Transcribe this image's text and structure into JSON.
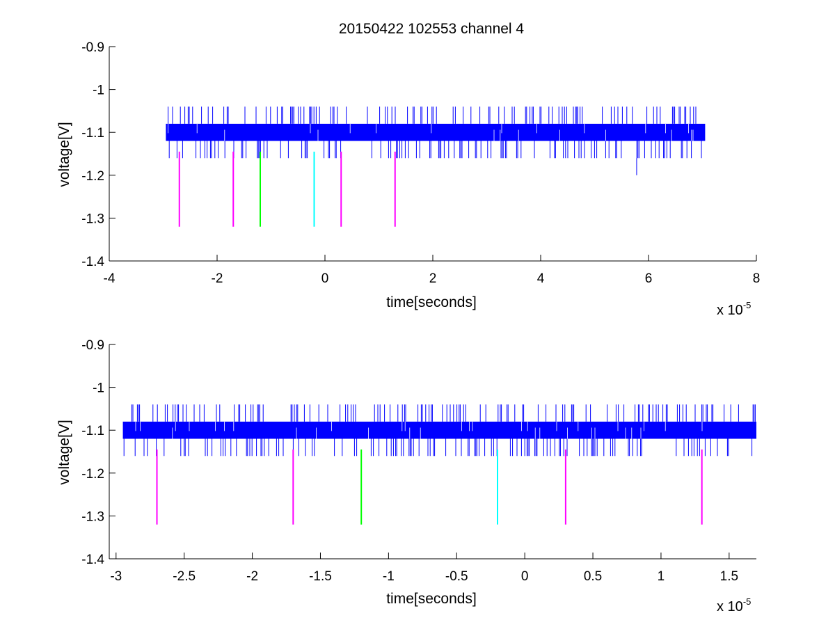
{
  "figure_title": "20150422 102553 channel 4",
  "colors": {
    "signal": "#0000ff",
    "marker_magenta": "#ff00ff",
    "marker_green": "#00ff00",
    "marker_cyan": "#00ffff",
    "axes": "#000000",
    "background": "#ffffff"
  },
  "chart_data": [
    {
      "type": "line",
      "title": "20150422 102553 channel 4",
      "xlabel": "time[seconds]",
      "ylabel": "voltage[V]",
      "x_multiplier": {
        "base": "x 10",
        "exponent": "-5"
      },
      "xlim": [
        -4,
        8
      ],
      "ylim": [
        -1.4,
        -0.9
      ],
      "xticks": [
        -4,
        -2,
        0,
        2,
        4,
        6,
        8
      ],
      "xtick_labels": [
        "-4",
        "-2",
        "0",
        "2",
        "4",
        "6",
        "8"
      ],
      "yticks": [
        -1.4,
        -1.3,
        -1.2,
        -1.1,
        -1,
        -0.9
      ],
      "ytick_labels": [
        "-1.4",
        "-1.3",
        "-1.2",
        "-1.1",
        "-1",
        "-0.9"
      ],
      "grid": false,
      "legend": "none",
      "series": [
        {
          "x_range": [
            -2.95,
            7.05
          ],
          "baseline_band": [
            -1.12,
            -1.08
          ],
          "spike_high": -1.04,
          "spike_low": -1.16,
          "outlier": {
            "x": 5.78,
            "y": -1.2
          }
        }
      ],
      "markers": [
        {
          "x": -2.7,
          "y_range": [
            -1.32,
            -1.145
          ],
          "color": "#ff00ff"
        },
        {
          "x": -1.7,
          "y_range": [
            -1.32,
            -1.145
          ],
          "color": "#ff00ff"
        },
        {
          "x": -1.2,
          "y_range": [
            -1.32,
            -1.145
          ],
          "color": "#00ff00"
        },
        {
          "x": -0.2,
          "y_range": [
            -1.32,
            -1.145
          ],
          "color": "#00ffff"
        },
        {
          "x": 0.3,
          "y_range": [
            -1.32,
            -1.145
          ],
          "color": "#ff00ff"
        },
        {
          "x": 1.3,
          "y_range": [
            -1.32,
            -1.145
          ],
          "color": "#ff00ff"
        }
      ]
    },
    {
      "type": "line",
      "title": "",
      "xlabel": "time[seconds]",
      "ylabel": "voltage[V]",
      "x_multiplier": {
        "base": "x 10",
        "exponent": "-5"
      },
      "xlim": [
        -3.05,
        1.7
      ],
      "ylim": [
        -1.4,
        -0.9
      ],
      "xticks": [
        -3,
        -2.5,
        -2,
        -1.5,
        -1,
        -0.5,
        0,
        0.5,
        1,
        1.5
      ],
      "xtick_labels": [
        "-3",
        "-2.5",
        "-2",
        "-1.5",
        "-1",
        "-0.5",
        "0",
        "0.5",
        "1",
        "1.5"
      ],
      "yticks": [
        -1.4,
        -1.3,
        -1.2,
        -1.1,
        -1,
        -0.9
      ],
      "ytick_labels": [
        "-1.4",
        "-1.3",
        "-1.2",
        "-1.1",
        "-1",
        "-0.9"
      ],
      "grid": false,
      "legend": "none",
      "series": [
        {
          "x_range": [
            -2.95,
            1.7
          ],
          "baseline_band": [
            -1.12,
            -1.08
          ],
          "spike_high": -1.04,
          "spike_low": -1.16
        }
      ],
      "markers": [
        {
          "x": -2.7,
          "y_range": [
            -1.32,
            -1.145
          ],
          "color": "#ff00ff"
        },
        {
          "x": -1.7,
          "y_range": [
            -1.32,
            -1.145
          ],
          "color": "#ff00ff"
        },
        {
          "x": -1.2,
          "y_range": [
            -1.32,
            -1.145
          ],
          "color": "#00ff00"
        },
        {
          "x": -0.2,
          "y_range": [
            -1.32,
            -1.145
          ],
          "color": "#00ffff"
        },
        {
          "x": 0.3,
          "y_range": [
            -1.32,
            -1.145
          ],
          "color": "#ff00ff"
        },
        {
          "x": 1.3,
          "y_range": [
            -1.32,
            -1.145
          ],
          "color": "#ff00ff"
        }
      ]
    }
  ]
}
